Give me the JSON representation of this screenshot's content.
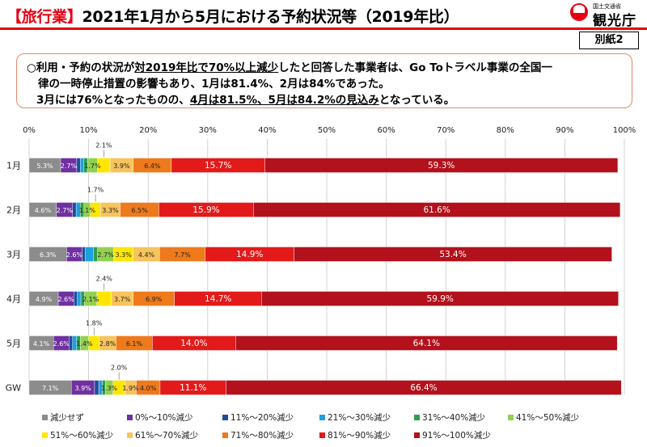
{
  "header": {
    "bracket_open": "【",
    "tag": "旅行業",
    "bracket_close": "】",
    "title": "2021年1月から5月における予約状況等（2019年比）",
    "logo_small": "国土交通省",
    "logo_main": "観光庁",
    "annex": "別紙2"
  },
  "summary": {
    "l1a": "○利用・予約の状況が",
    "l1b": "対2019年比で70%以上減少",
    "l1c": "したと回答した事業者は、Go Toトラベル事業の全国一",
    "l2": "律の一時停止措置の影響もあり、1月は81.4%、2月は84%であった。",
    "l3a": "3月には76%となったものの、",
    "l3b": "4月は81.5%、5月は84.2%の見込み",
    "l3c": "となっている。"
  },
  "chart_data": {
    "type": "bar",
    "orientation": "horizontal",
    "stacked": true,
    "xlim": [
      0,
      100
    ],
    "ticks": [
      "0%",
      "10%",
      "20%",
      "30%",
      "40%",
      "50%",
      "60%",
      "70%",
      "80%",
      "90%",
      "100%"
    ],
    "categories": [
      "1月",
      "2月",
      "3月",
      "4月",
      "5月",
      "GW"
    ],
    "series": [
      {
        "name": "減少せず",
        "color": "#8c8c8c",
        "values": [
          5.3,
          4.6,
          6.3,
          4.9,
          4.1,
          7.1
        ]
      },
      {
        "name": "0%～10%減少",
        "color": "#7030a0",
        "values": [
          2.7,
          2.7,
          2.6,
          2.6,
          2.6,
          3.9
        ]
      },
      {
        "name": "11%～20%減少",
        "color": "#1f4e9a",
        "values": [
          0.6,
          0.6,
          0.5,
          0.6,
          0.6,
          0.7
        ]
      },
      {
        "name": "21%～30%減少",
        "color": "#1e9fe0",
        "values": [
          0.6,
          0.7,
          1.4,
          0.6,
          0.7,
          0.6
        ]
      },
      {
        "name": "31%～40%減少",
        "color": "#2e9e4c",
        "values": [
          0.6,
          0.6,
          0.7,
          0.6,
          0.6,
          0.5
        ]
      },
      {
        "name": "41%～50%減少",
        "color": "#92d050",
        "values": [
          1.7,
          1.1,
          2.7,
          2.1,
          1.4,
          1.3
        ]
      },
      {
        "name": "51%～60%減少",
        "color": "#ffe600",
        "values": [
          2.1,
          1.7,
          3.3,
          2.4,
          1.8,
          2.0
        ]
      },
      {
        "name": "61%～70%減少",
        "color": "#f7c35c",
        "values": [
          3.9,
          3.3,
          4.4,
          3.7,
          2.8,
          1.9
        ]
      },
      {
        "name": "71%～80%減少",
        "color": "#ee7a1b",
        "values": [
          6.4,
          6.5,
          7.7,
          6.9,
          6.1,
          4.0
        ]
      },
      {
        "name": "81%～90%減少",
        "color": "#e21a1a",
        "values": [
          15.7,
          15.9,
          14.9,
          14.7,
          14.0,
          11.1
        ]
      },
      {
        "name": "91%～100%減少",
        "color": "#b3111c",
        "values": [
          59.3,
          61.6,
          53.4,
          59.9,
          64.1,
          66.4
        ]
      }
    ],
    "labels": [
      [
        {
          "s": 0,
          "t": "5.3%"
        },
        {
          "s": 1,
          "t": "2.7%"
        },
        {
          "s": 5,
          "t": "1.7%"
        },
        {
          "s": 6,
          "t": "2.1%",
          "above": true
        },
        {
          "s": 7,
          "t": "3.9%"
        },
        {
          "s": 8,
          "t": "6.4%"
        },
        {
          "s": 9,
          "t": "15.7%"
        },
        {
          "s": 10,
          "t": "59.3%"
        }
      ],
      [
        {
          "s": 0,
          "t": "4.6%"
        },
        {
          "s": 1,
          "t": "2.7%"
        },
        {
          "s": 5,
          "t": "1.1%"
        },
        {
          "s": 6,
          "t": "1.7%",
          "above": true
        },
        {
          "s": 7,
          "t": "3.3%"
        },
        {
          "s": 8,
          "t": "6.5%"
        },
        {
          "s": 9,
          "t": "15.9%"
        },
        {
          "s": 10,
          "t": "61.6%"
        }
      ],
      [
        {
          "s": 0,
          "t": "6.3%"
        },
        {
          "s": 1,
          "t": "2.6%"
        },
        {
          "s": 5,
          "t": "2.7%"
        },
        {
          "s": 6,
          "t": "3.3%"
        },
        {
          "s": 7,
          "t": "4.4%"
        },
        {
          "s": 8,
          "t": "7.7%"
        },
        {
          "s": 9,
          "t": "14.9%"
        },
        {
          "s": 10,
          "t": "53.4%"
        }
      ],
      [
        {
          "s": 0,
          "t": "4.9%"
        },
        {
          "s": 1,
          "t": "2.6%"
        },
        {
          "s": 5,
          "t": "2.1%"
        },
        {
          "s": 6,
          "t": "2.4%",
          "above": true
        },
        {
          "s": 7,
          "t": "3.7%"
        },
        {
          "s": 8,
          "t": "6.9%"
        },
        {
          "s": 9,
          "t": "14.7%"
        },
        {
          "s": 10,
          "t": "59.9%"
        }
      ],
      [
        {
          "s": 0,
          "t": "4.1%"
        },
        {
          "s": 1,
          "t": "2.6%"
        },
        {
          "s": 5,
          "t": "1.4%"
        },
        {
          "s": 6,
          "t": "1.8%",
          "above": true
        },
        {
          "s": 7,
          "t": "2.8%"
        },
        {
          "s": 8,
          "t": "6.1%"
        },
        {
          "s": 9,
          "t": "14.0%"
        },
        {
          "s": 10,
          "t": "64.1%"
        }
      ],
      [
        {
          "s": 0,
          "t": "7.1%"
        },
        {
          "s": 1,
          "t": "3.9%"
        },
        {
          "s": 5,
          "t": "1.3%"
        },
        {
          "s": 6,
          "t": "2.0%",
          "above": true
        },
        {
          "s": 7,
          "t": "1.9%"
        },
        {
          "s": 8,
          "t": "4.0%"
        },
        {
          "s": 9,
          "t": "11.1%"
        },
        {
          "s": 10,
          "t": "66.4%"
        }
      ]
    ],
    "grid": "vertical",
    "legend_position": "bottom"
  }
}
